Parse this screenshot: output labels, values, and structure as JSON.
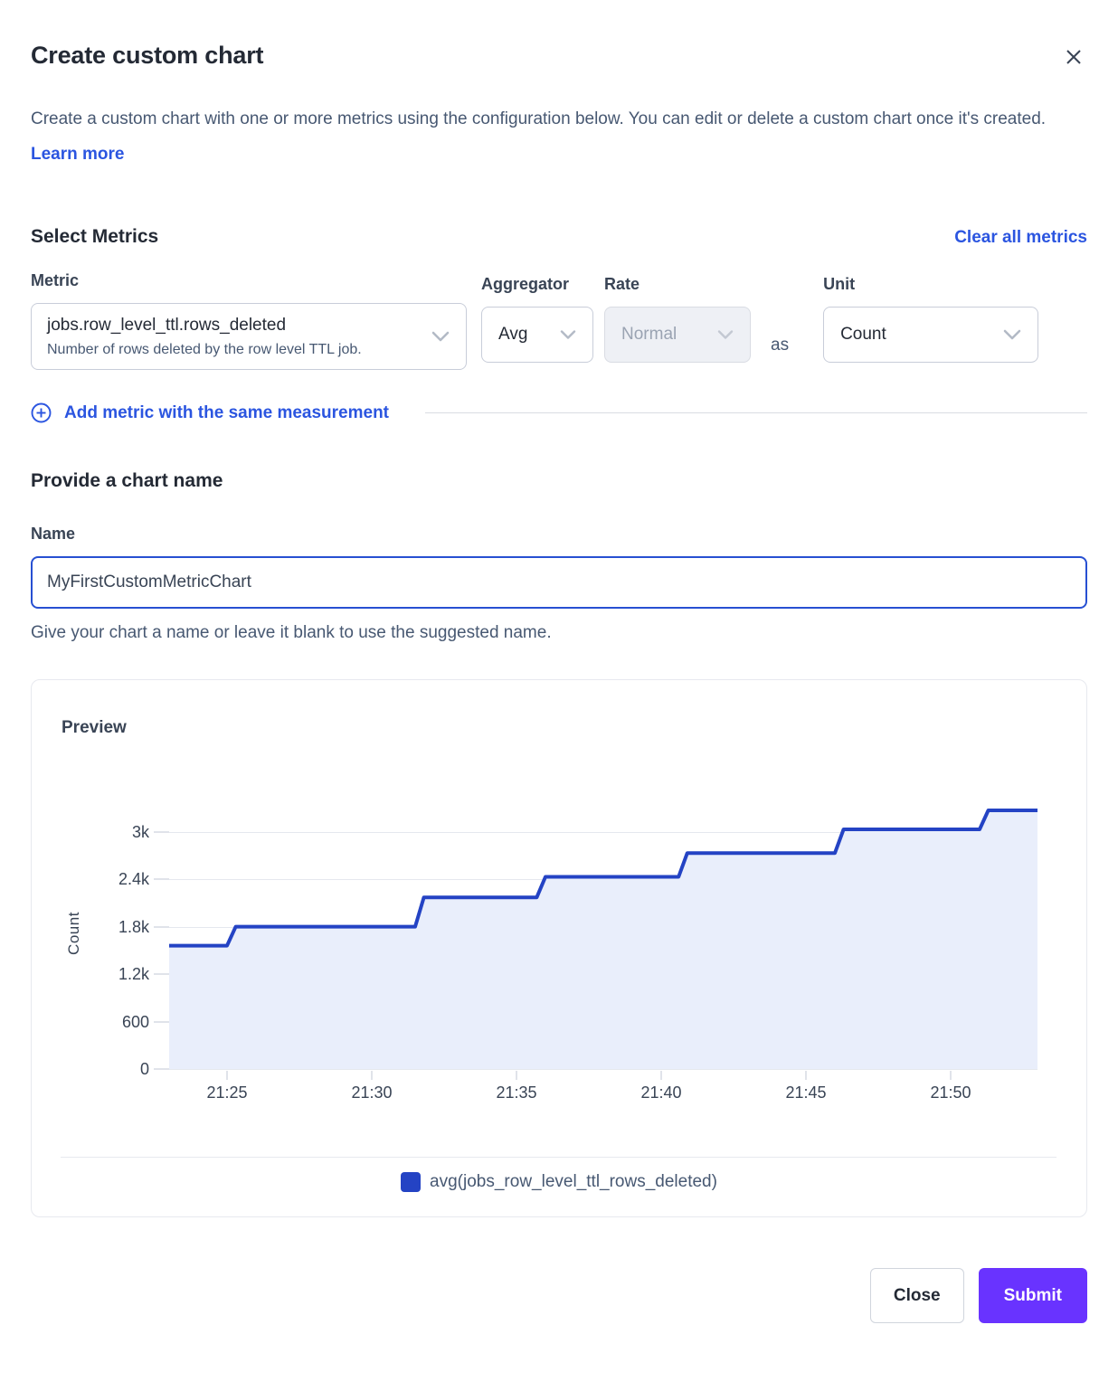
{
  "modal": {
    "title": "Create custom chart",
    "description": "Create a custom chart with one or more metrics using the configuration below. You can edit or delete a custom chart once it's created.",
    "learn_more_label": "Learn more"
  },
  "metrics": {
    "heading": "Select Metrics",
    "clear_all_label": "Clear all metrics",
    "metric_label": "Metric",
    "metric_value": "jobs.row_level_ttl.rows_deleted",
    "metric_description": "Number of rows deleted by the row level TTL job.",
    "aggregator_label": "Aggregator",
    "aggregator_value": "Avg",
    "rate_label": "Rate",
    "rate_value": "Normal",
    "as_label": "as",
    "unit_label": "Unit",
    "unit_value": "Count",
    "add_metric_label": "Add metric with the same measurement"
  },
  "chart_name": {
    "heading": "Provide a chart name",
    "name_label": "Name",
    "name_value": "MyFirstCustomMetricChart",
    "helper": "Give your chart a name or leave it blank to use the suggested name."
  },
  "preview": {
    "heading": "Preview"
  },
  "chart_data": {
    "type": "area",
    "step": true,
    "title": "Preview",
    "ylabel": "Count",
    "xlabel": "",
    "grid": "horizontal",
    "legend_position": "bottom",
    "x_domain_minutes": [
      23.0,
      53.0
    ],
    "y_domain": [
      0,
      3430
    ],
    "x_ticks": [
      {
        "t": 25,
        "label": "21:25"
      },
      {
        "t": 30,
        "label": "21:30"
      },
      {
        "t": 35,
        "label": "21:35"
      },
      {
        "t": 40,
        "label": "21:40"
      },
      {
        "t": 45,
        "label": "21:45"
      },
      {
        "t": 50,
        "label": "21:50"
      }
    ],
    "y_ticks": [
      {
        "v": 0,
        "label": "0"
      },
      {
        "v": 600,
        "label": "600"
      },
      {
        "v": 1200,
        "label": "1.2k"
      },
      {
        "v": 1800,
        "label": "1.8k"
      },
      {
        "v": 2400,
        "label": "2.4k"
      },
      {
        "v": 3000,
        "label": "3k"
      }
    ],
    "series": [
      {
        "name": "avg(jobs_row_level_ttl_rows_deleted)",
        "color": "#2443c4",
        "fill": "#e9eefb",
        "points_time_value": [
          [
            23.0,
            1560
          ],
          [
            25.0,
            1560
          ],
          [
            25.3,
            1800
          ],
          [
            31.5,
            1800
          ],
          [
            31.8,
            2170
          ],
          [
            35.7,
            2170
          ],
          [
            36.0,
            2430
          ],
          [
            40.6,
            2430
          ],
          [
            40.9,
            2730
          ],
          [
            46.0,
            2730
          ],
          [
            46.3,
            3030
          ],
          [
            51.0,
            3030
          ],
          [
            51.3,
            3270
          ],
          [
            53.0,
            3270
          ]
        ]
      }
    ]
  },
  "footer": {
    "close_label": "Close",
    "submit_label": "Submit"
  },
  "colors": {
    "accent_blue": "#2b55e0",
    "line_blue": "#2443c4",
    "area_fill": "#e9eefb",
    "submit_purple": "#6933ff"
  }
}
